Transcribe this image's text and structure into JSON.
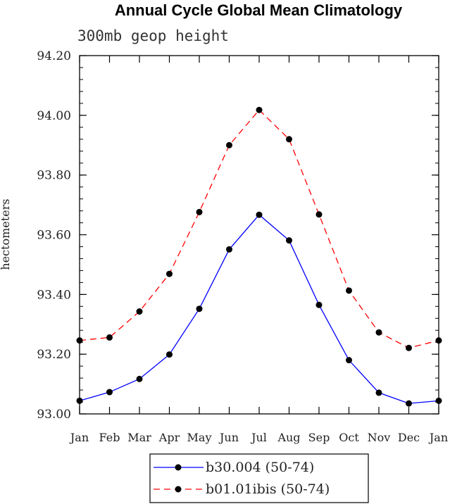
{
  "chart_data": {
    "type": "line",
    "title": "Annual Cycle Global Mean Climatology",
    "subtitle": "300mb geop height",
    "xlabel": "",
    "ylabel": "hectometers",
    "categories": [
      "Jan",
      "Feb",
      "Mar",
      "Apr",
      "May",
      "Jun",
      "Jul",
      "Aug",
      "Sep",
      "Oct",
      "Nov",
      "Dec",
      "Jan"
    ],
    "ylim": [
      93.0,
      94.2
    ],
    "yticks": [
      "93.00",
      "93.20",
      "93.40",
      "93.60",
      "93.80",
      "94.00",
      "94.20"
    ],
    "series": [
      {
        "name": "b30.004 (50-74)",
        "color": "#0000ff",
        "dash": "solid",
        "marker": "dot",
        "values": [
          93.044,
          93.073,
          93.117,
          93.199,
          93.352,
          93.551,
          93.667,
          93.581,
          93.365,
          93.18,
          93.071,
          93.035,
          93.044
        ]
      },
      {
        "name": "b01.01ibis (50-74)",
        "color": "#ff0000",
        "dash": "dashed",
        "marker": "dot",
        "values": [
          93.246,
          93.256,
          93.343,
          93.469,
          93.676,
          93.9,
          94.018,
          93.92,
          93.668,
          93.413,
          93.273,
          93.221,
          93.246
        ]
      }
    ],
    "grid": false,
    "legend_position": "bottom"
  }
}
